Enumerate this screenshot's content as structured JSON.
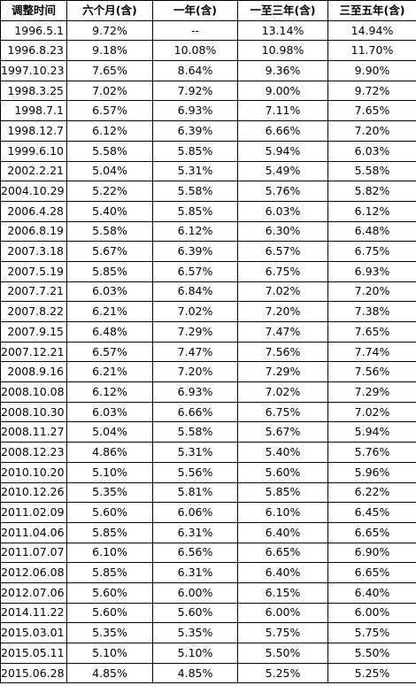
{
  "table": {
    "headers": [
      "调整时间",
      "六个月(含)",
      "一年(含)",
      "一至三年(含)",
      "三至五年(含)"
    ],
    "rows": [
      [
        "1996.5.1",
        "9.72%",
        "--",
        "13.14%",
        "14.94%"
      ],
      [
        "1996.8.23",
        "9.18%",
        "10.08%",
        "10.98%",
        "11.70%"
      ],
      [
        "1997.10.23",
        "7.65%",
        "8.64%",
        "9.36%",
        "9.90%"
      ],
      [
        "1998.3.25",
        "7.02%",
        "7.92%",
        "9.00%",
        "9.72%"
      ],
      [
        "1998.7.1",
        "6.57%",
        "6.93%",
        "7.11%",
        "7.65%"
      ],
      [
        "1998.12.7",
        "6.12%",
        "6.39%",
        "6.66%",
        "7.20%"
      ],
      [
        "1999.6.10",
        "5.58%",
        "5.85%",
        "5.94%",
        "6.03%"
      ],
      [
        "2002.2.21",
        "5.04%",
        "5.31%",
        "5.49%",
        "5.58%"
      ],
      [
        "2004.10.29",
        "5.22%",
        "5.58%",
        "5.76%",
        "5.82%"
      ],
      [
        "2006.4.28",
        "5.40%",
        "5.85%",
        "6.03%",
        "6.12%"
      ],
      [
        "2006.8.19",
        "5.58%",
        "6.12%",
        "6.30%",
        "6.48%"
      ],
      [
        "2007.3.18",
        "5.67%",
        "6.39%",
        "6.57%",
        "6.75%"
      ],
      [
        "2007.5.19",
        "5.85%",
        "6.57%",
        "6.75%",
        "6.93%"
      ],
      [
        "2007.7.21",
        "6.03%",
        "6.84%",
        "7.02%",
        "7.20%"
      ],
      [
        "2007.8.22",
        "6.21%",
        "7.02%",
        "7.20%",
        "7.38%"
      ],
      [
        "2007.9.15",
        "6.48%",
        "7.29%",
        "7.47%",
        "7.65%"
      ],
      [
        "2007.12.21",
        "6.57%",
        "7.47%",
        "7.56%",
        "7.74%"
      ],
      [
        "2008.9.16",
        "6.21%",
        "7.20%",
        "7.29%",
        "7.56%"
      ],
      [
        "2008.10.08",
        "6.12%",
        "6.93%",
        "7.02%",
        "7.29%"
      ],
      [
        "2008.10.30",
        "6.03%",
        "6.66%",
        "6.75%",
        "7.02%"
      ],
      [
        "2008.11.27",
        "5.04%",
        "5.58%",
        "5.67%",
        "5.94%"
      ],
      [
        "2008.12.23",
        "4.86%",
        "5.31%",
        "5.40%",
        "5.76%"
      ],
      [
        "2010.10.20",
        "5.10%",
        "5.56%",
        "5.60%",
        "5.96%"
      ],
      [
        "2010.12.26",
        "5.35%",
        "5.81%",
        "5.85%",
        "6.22%"
      ],
      [
        "2011.02.09",
        "5.60%",
        "6.06%",
        "6.10%",
        "6.45%"
      ],
      [
        "2011.04.06",
        "5.85%",
        "6.31%",
        "6.40%",
        "6.65%"
      ],
      [
        "2011.07.07",
        "6.10%",
        "6.56%",
        "6.65%",
        "6.90%"
      ],
      [
        "2012.06.08",
        "5.85%",
        "6.31%",
        "6.40%",
        "6.65%"
      ],
      [
        "2012.07.06",
        "5.60%",
        "6.00%",
        "6.15%",
        "6.40%"
      ],
      [
        "2014.11.22",
        "5.60%",
        "5.60%",
        "6.00%",
        "6.00%"
      ],
      [
        "2015.03.01",
        "5.35%",
        "5.35%",
        "5.75%",
        "5.75%"
      ],
      [
        "2015.05.11",
        "5.10%",
        "5.10%",
        "5.50%",
        "5.50%"
      ],
      [
        "2015.06.28",
        "4.85%",
        "4.85%",
        "5.25%",
        "5.25%"
      ]
    ]
  }
}
